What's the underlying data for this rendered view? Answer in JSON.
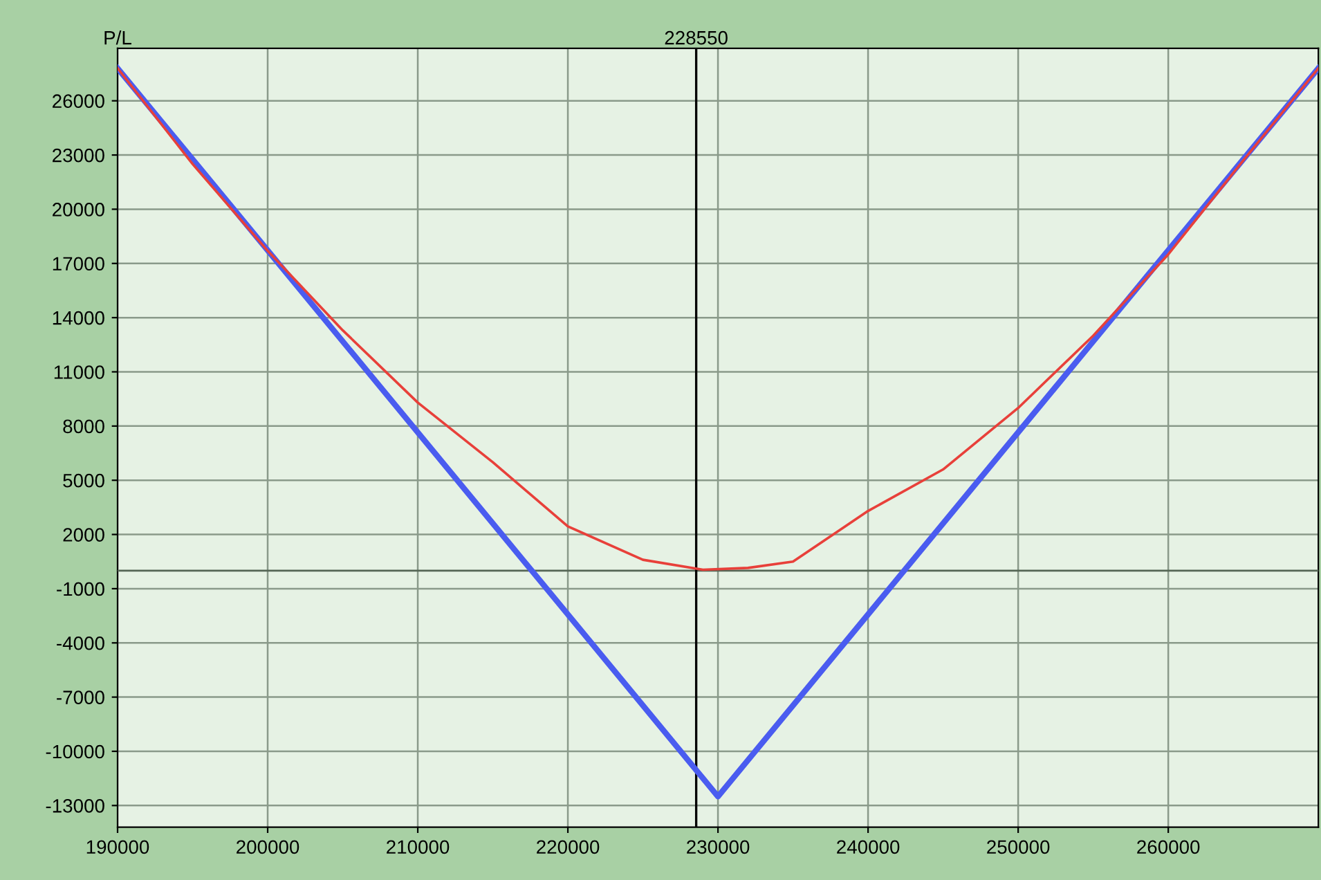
{
  "chart_data": {
    "type": "line",
    "ylabel": "P/L",
    "xlim": [
      190000,
      270000
    ],
    "ylim": [
      -14200,
      28900
    ],
    "xticks": [
      190000,
      200000,
      210000,
      220000,
      230000,
      240000,
      250000,
      260000
    ],
    "yticks": [
      -13000,
      -10000,
      -7000,
      -4000,
      -1000,
      2000,
      5000,
      8000,
      11000,
      14000,
      17000,
      20000,
      23000,
      26000
    ],
    "grid": true,
    "legend": false,
    "marker": "none",
    "line_style": "solid",
    "series": [
      {
        "color": "#4a5cf0",
        "x": [
          190000,
          230000,
          270000
        ],
        "values": [
          27800,
          -12500,
          27800
        ]
      },
      {
        "color": "#e8403a",
        "x": [
          190000,
          195000,
          200000,
          205000,
          210000,
          215000,
          220000,
          225000,
          229000,
          232000,
          235000,
          240000,
          245000,
          250000,
          255000,
          260000,
          265000,
          270000
        ],
        "values": [
          27800,
          22500,
          17700,
          13300,
          9300,
          6000,
          2450,
          600,
          50,
          150,
          500,
          3300,
          5600,
          9000,
          13000,
          17500,
          22700,
          27800
        ]
      }
    ],
    "ref_lines": [
      {
        "axis": "y",
        "value": 0,
        "color": "#556655"
      },
      {
        "axis": "x",
        "value": 228550,
        "label": "228550",
        "color": "#000000"
      }
    ]
  }
}
